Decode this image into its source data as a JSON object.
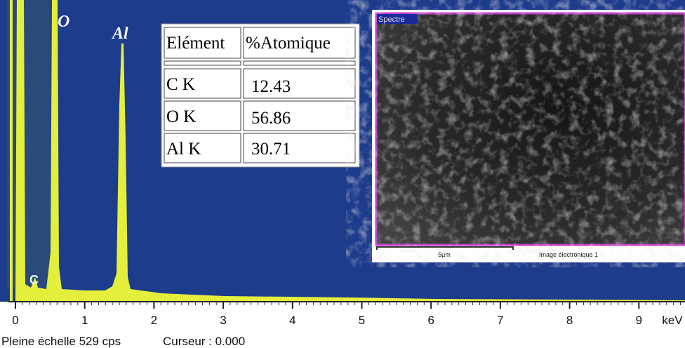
{
  "spectrum": {
    "peak_labels": [
      "O",
      "Al",
      "C"
    ],
    "xticks": [
      0,
      1,
      2,
      3,
      4,
      5,
      6,
      7,
      8,
      9
    ],
    "x_unit": "keV"
  },
  "table": {
    "header": [
      "Elément",
      "%Atomique"
    ],
    "rows": [
      [
        "C K",
        12.43
      ],
      [
        "O K",
        56.86
      ],
      [
        "Al K",
        30.71
      ]
    ]
  },
  "image": {
    "label": "Spectre",
    "scale": "5µm",
    "caption": "Image électronique 1"
  },
  "footer": {
    "full_scale": "Pleine échelle 529 cps",
    "cursor": "Curseur : 0.000"
  }
}
